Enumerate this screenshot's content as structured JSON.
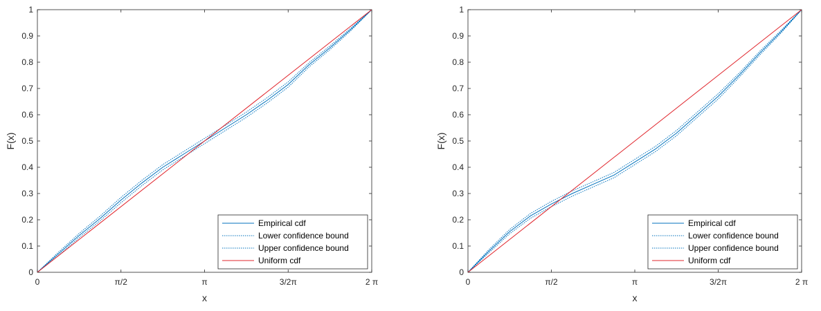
{
  "chart_data": [
    {
      "type": "line",
      "xlabel": "x",
      "ylabel": "F(x)",
      "xlim": [
        0,
        6.2832
      ],
      "ylim": [
        0,
        1
      ],
      "x_ticks": [
        {
          "value": 0,
          "label": "0"
        },
        {
          "value": 1.5708,
          "label": "π/2"
        },
        {
          "value": 3.1416,
          "label": "π"
        },
        {
          "value": 4.7124,
          "label": "3/2π"
        },
        {
          "value": 6.2832,
          "label": "2 π"
        }
      ],
      "y_ticks": [
        {
          "value": 0,
          "label": "0"
        },
        {
          "value": 0.1,
          "label": "0.1"
        },
        {
          "value": 0.2,
          "label": "0.2"
        },
        {
          "value": 0.3,
          "label": "0.3"
        },
        {
          "value": 0.4,
          "label": "0.4"
        },
        {
          "value": 0.5,
          "label": "0.5"
        },
        {
          "value": 0.6,
          "label": "0.6"
        },
        {
          "value": 0.7,
          "label": "0.7"
        },
        {
          "value": 0.8,
          "label": "0.8"
        },
        {
          "value": 0.9,
          "label": "0.9"
        },
        {
          "value": 1,
          "label": "1"
        }
      ],
      "grid": false,
      "legend_position": "bottom-right",
      "series": [
        {
          "name": "Empirical cdf",
          "style": "solid",
          "color": "#0072BD",
          "x": [
            0,
            0.3927,
            0.7854,
            1.1781,
            1.5708,
            1.9635,
            2.3562,
            2.7489,
            3.1416,
            3.5343,
            3.927,
            4.3197,
            4.7124,
            5.1051,
            5.4978,
            5.8905,
            6.2832
          ],
          "y": [
            0,
            0.07,
            0.14,
            0.205,
            0.275,
            0.34,
            0.4,
            0.45,
            0.5,
            0.55,
            0.6,
            0.655,
            0.715,
            0.79,
            0.855,
            0.925,
            1
          ]
        },
        {
          "name": "Lower confidence bound",
          "style": "dotted",
          "color": "#0072BD",
          "x": [
            0,
            0.3927,
            0.7854,
            1.1781,
            1.5708,
            1.9635,
            2.3562,
            2.7489,
            3.1416,
            3.5343,
            3.927,
            4.3197,
            4.7124,
            5.1051,
            5.4978,
            5.8905,
            6.2832
          ],
          "y": [
            0,
            0.064,
            0.132,
            0.196,
            0.265,
            0.33,
            0.39,
            0.44,
            0.49,
            0.54,
            0.59,
            0.645,
            0.705,
            0.782,
            0.848,
            0.92,
            1
          ]
        },
        {
          "name": "Upper confidence bound",
          "style": "dotted",
          "color": "#0072BD",
          "x": [
            0,
            0.3927,
            0.7854,
            1.1781,
            1.5708,
            1.9635,
            2.3562,
            2.7489,
            3.1416,
            3.5343,
            3.927,
            4.3197,
            4.7124,
            5.1051,
            5.4978,
            5.8905,
            6.2832
          ],
          "y": [
            0,
            0.076,
            0.148,
            0.214,
            0.285,
            0.35,
            0.41,
            0.46,
            0.51,
            0.56,
            0.61,
            0.665,
            0.725,
            0.798,
            0.862,
            0.93,
            1
          ]
        },
        {
          "name": "Uniform cdf",
          "style": "solid",
          "color": "#E0242B",
          "x": [
            0,
            6.2832
          ],
          "y": [
            0,
            1
          ]
        }
      ]
    },
    {
      "type": "line",
      "xlabel": "x",
      "ylabel": "F(x)",
      "xlim": [
        0,
        6.2832
      ],
      "ylim": [
        0,
        1
      ],
      "x_ticks": [
        {
          "value": 0,
          "label": "0"
        },
        {
          "value": 1.5708,
          "label": "π/2"
        },
        {
          "value": 3.1416,
          "label": "π"
        },
        {
          "value": 4.7124,
          "label": "3/2π"
        },
        {
          "value": 6.2832,
          "label": "2 π"
        }
      ],
      "y_ticks": [
        {
          "value": 0,
          "label": "0"
        },
        {
          "value": 0.1,
          "label": "0.1"
        },
        {
          "value": 0.2,
          "label": "0.2"
        },
        {
          "value": 0.3,
          "label": "0.3"
        },
        {
          "value": 0.4,
          "label": "0.4"
        },
        {
          "value": 0.5,
          "label": "0.5"
        },
        {
          "value": 0.6,
          "label": "0.6"
        },
        {
          "value": 0.7,
          "label": "0.7"
        },
        {
          "value": 0.8,
          "label": "0.8"
        },
        {
          "value": 0.9,
          "label": "0.9"
        },
        {
          "value": 1,
          "label": "1"
        }
      ],
      "grid": false,
      "legend_position": "bottom-right",
      "series": [
        {
          "name": "Empirical cdf",
          "style": "solid",
          "color": "#0072BD",
          "x": [
            0,
            0.3927,
            0.7854,
            1.1781,
            1.5708,
            1.9635,
            2.3562,
            2.7489,
            3.1416,
            3.5343,
            3.927,
            4.3197,
            4.7124,
            5.1051,
            5.4978,
            5.8905,
            6.2832
          ],
          "y": [
            0,
            0.08,
            0.155,
            0.215,
            0.26,
            0.3,
            0.335,
            0.37,
            0.42,
            0.47,
            0.53,
            0.6,
            0.67,
            0.75,
            0.835,
            0.915,
            1
          ]
        },
        {
          "name": "Lower confidence bound",
          "style": "dotted",
          "color": "#0072BD",
          "x": [
            0,
            0.3927,
            0.7854,
            1.1781,
            1.5708,
            1.9635,
            2.3562,
            2.7489,
            3.1416,
            3.5343,
            3.927,
            4.3197,
            4.7124,
            5.1051,
            5.4978,
            5.8905,
            6.2832
          ],
          "y": [
            0,
            0.074,
            0.147,
            0.206,
            0.25,
            0.29,
            0.325,
            0.36,
            0.41,
            0.46,
            0.52,
            0.59,
            0.66,
            0.742,
            0.828,
            0.91,
            1
          ]
        },
        {
          "name": "Upper confidence bound",
          "style": "dotted",
          "color": "#0072BD",
          "x": [
            0,
            0.3927,
            0.7854,
            1.1781,
            1.5708,
            1.9635,
            2.3562,
            2.7489,
            3.1416,
            3.5343,
            3.927,
            4.3197,
            4.7124,
            5.1051,
            5.4978,
            5.8905,
            6.2832
          ],
          "y": [
            0,
            0.086,
            0.163,
            0.224,
            0.27,
            0.31,
            0.345,
            0.38,
            0.43,
            0.48,
            0.54,
            0.61,
            0.68,
            0.758,
            0.842,
            0.92,
            1
          ]
        },
        {
          "name": "Uniform cdf",
          "style": "solid",
          "color": "#E0242B",
          "x": [
            0,
            6.2832
          ],
          "y": [
            0,
            1
          ]
        }
      ]
    }
  ]
}
